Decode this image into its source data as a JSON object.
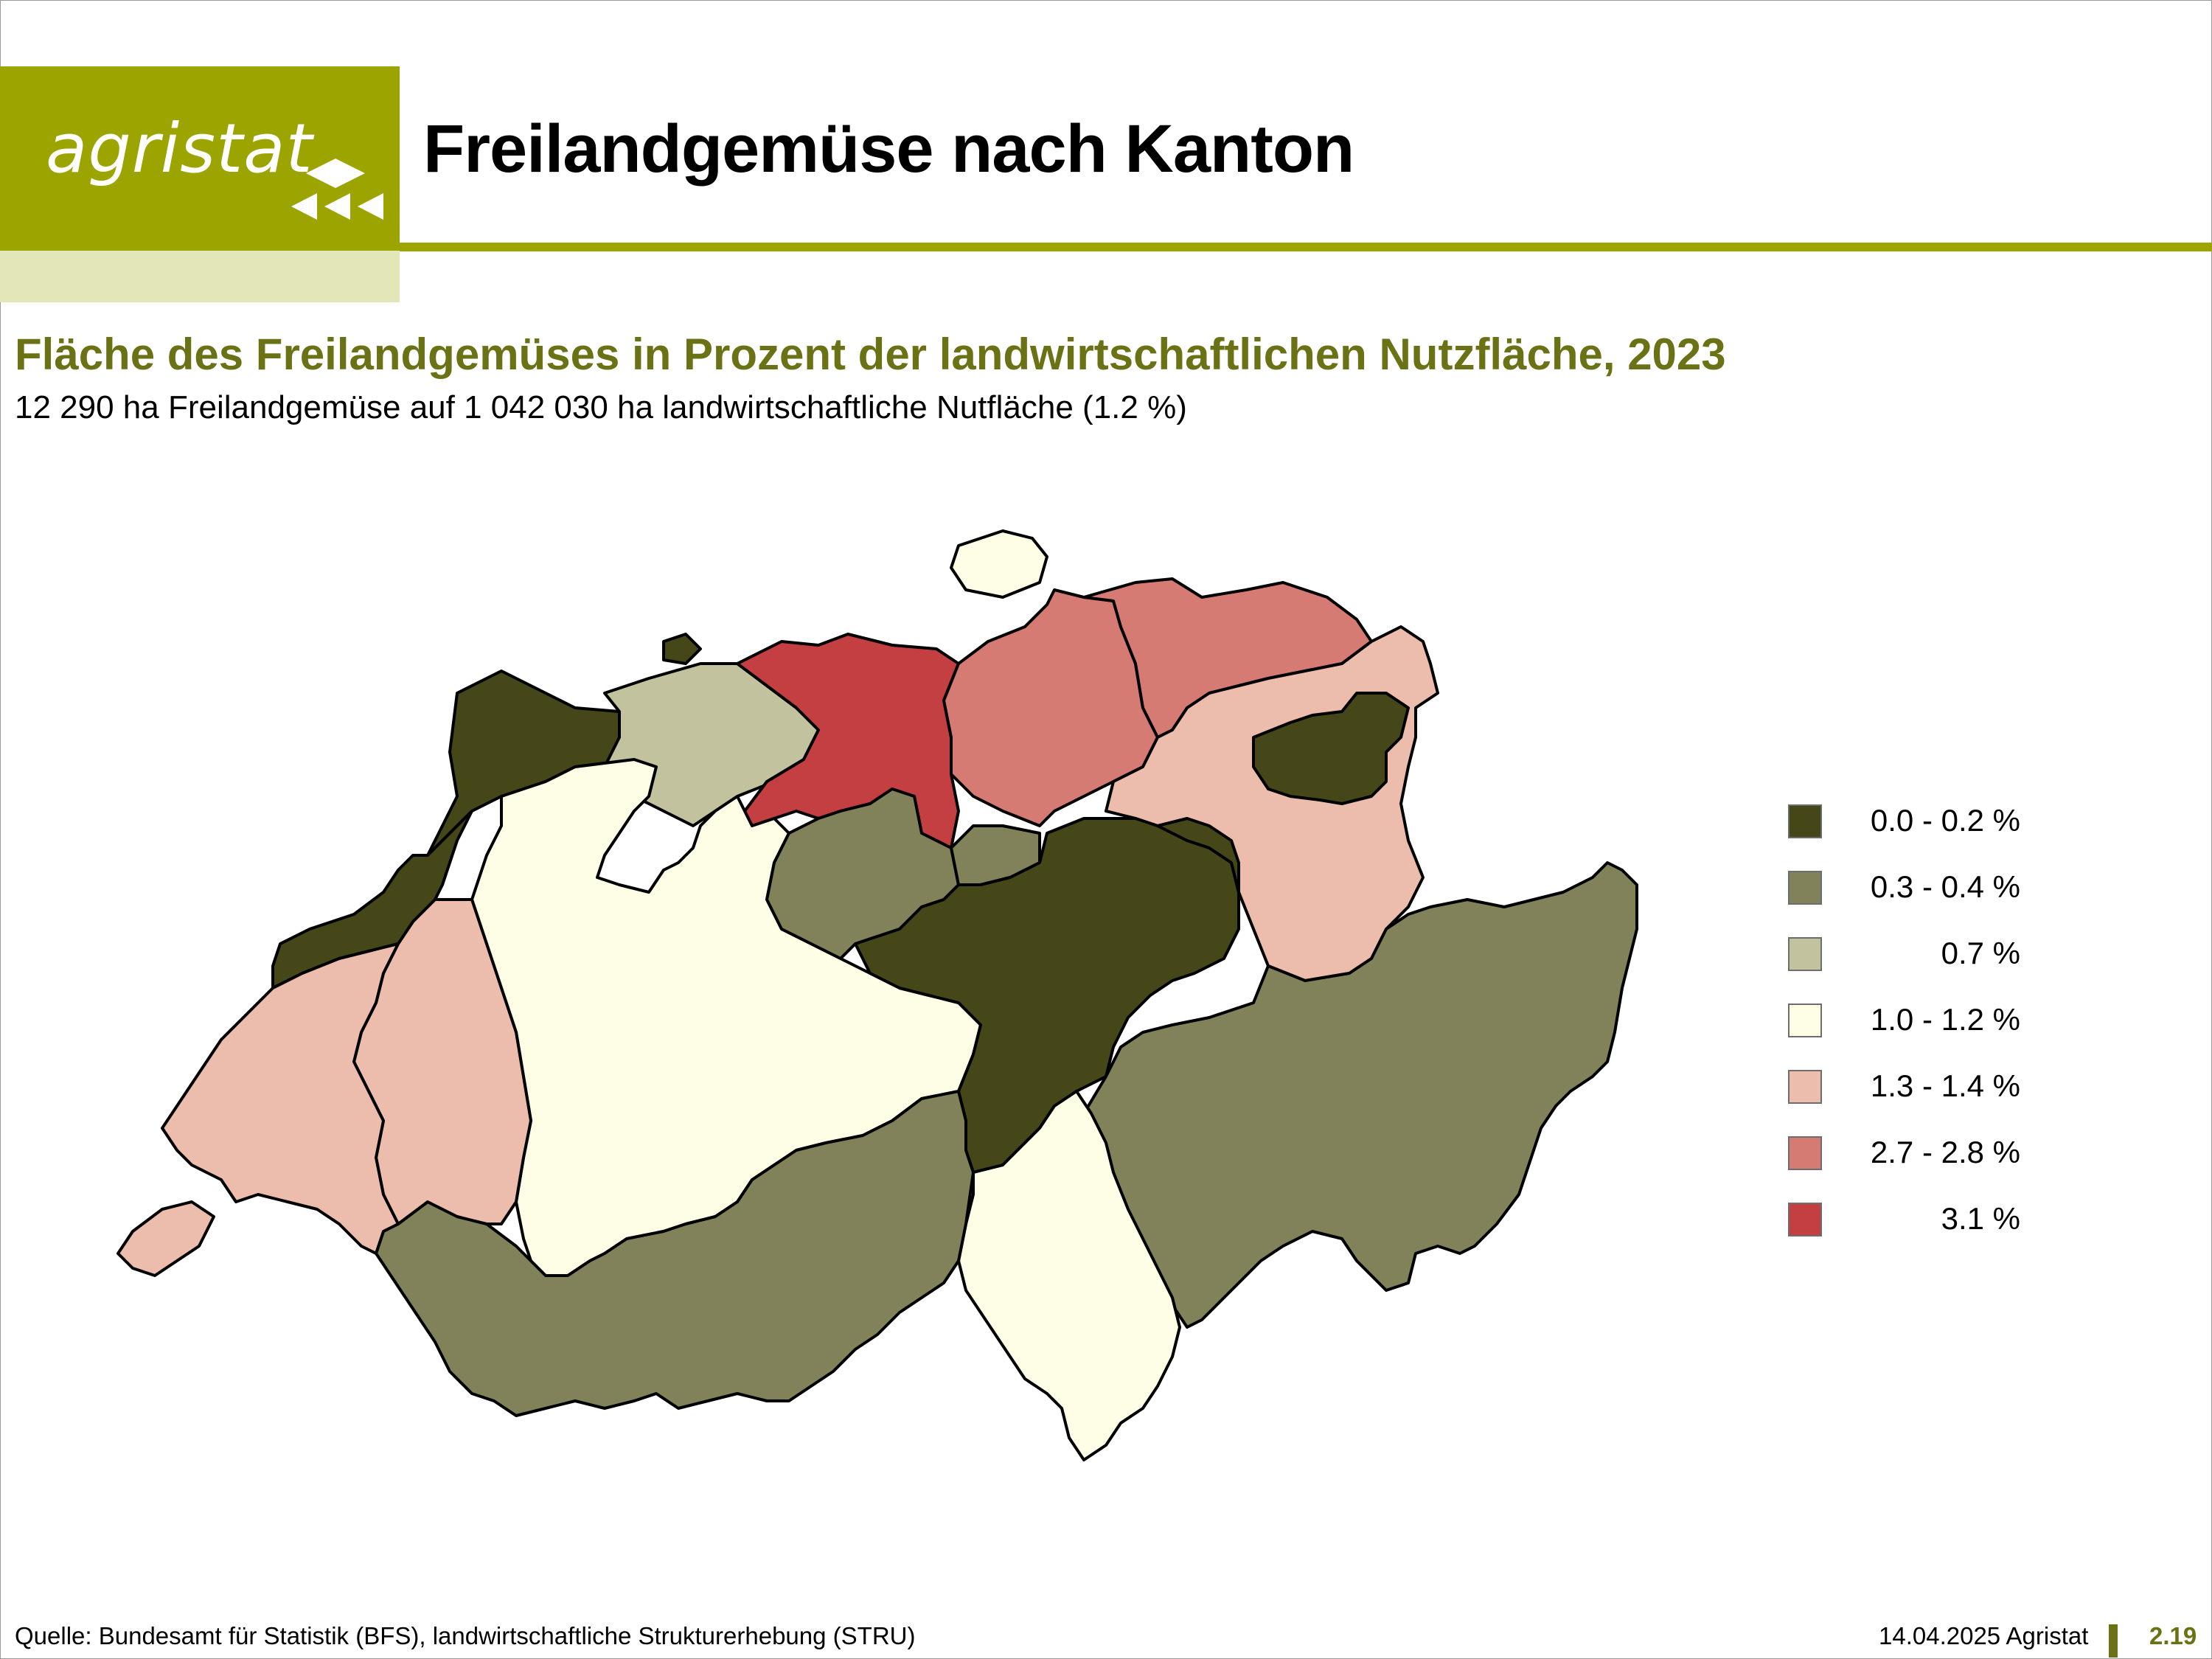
{
  "header": {
    "logo_text": "agristat",
    "title": "Freilandgemüse nach Kanton"
  },
  "subtitle": "Fläche des Freilandgemüses in Prozent der landwirtschaftlichen Nutzfläche, 2023",
  "summary": "12 290 ha Freilandgemüse auf 1 042 030 ha landwirtschaftliche Nutfläche (1.2 %)",
  "colors": {
    "brand": "#9ca400",
    "brand_pale": "#e3e6b7",
    "title_green": "#6b7216"
  },
  "legend": [
    {
      "label": "0.0 - 0.2 %",
      "color": "#464719"
    },
    {
      "label": "0.3 - 0.4 %",
      "color": "#82825a"
    },
    {
      "label": "0.7 %",
      "color": "#c2c29e"
    },
    {
      "label": "1.0 - 1.2 %",
      "color": "#fefee6"
    },
    {
      "label": "1.3 - 1.4 %",
      "color": "#ecbcac"
    },
    {
      "label": "2.7 - 2.8 %",
      "color": "#d67b74"
    },
    {
      "label": "3.1 %",
      "color": "#c43f41"
    }
  ],
  "footer": {
    "source": "Quelle: Bundesamt für Statistik (BFS), landwirtschaftliche Strukturerhebung (STRU)",
    "date": "14.04.2025 Agristat",
    "page": "2.19"
  }
}
